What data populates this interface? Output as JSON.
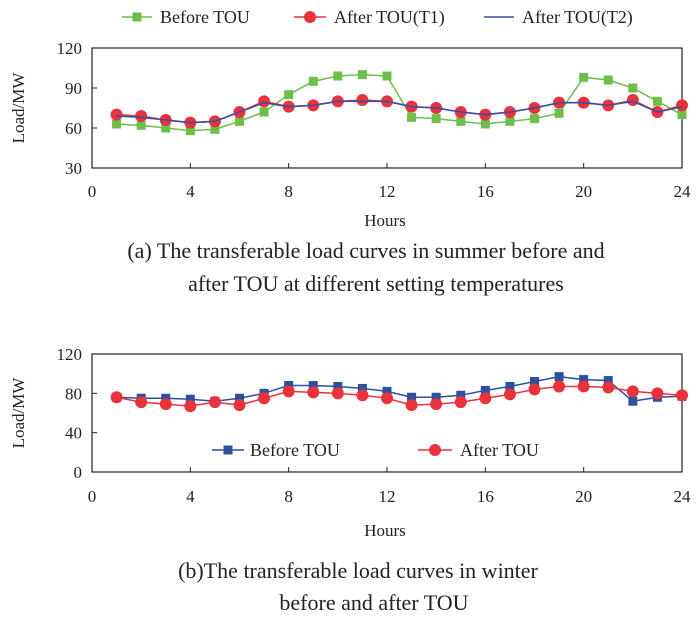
{
  "chart_data": [
    {
      "type": "line",
      "caption": [
        "(a) The transferable load curves in summer before and",
        "after TOU at different setting temperatures"
      ],
      "xlabel": "Hours",
      "ylabel": "Load/MW",
      "xlim": [
        0,
        24
      ],
      "ylim": [
        30,
        120
      ],
      "xticks": [
        "0",
        "4",
        "8",
        "12",
        "16",
        "20",
        "24"
      ],
      "yticks": [
        "30",
        "60",
        "90",
        "120"
      ],
      "grid": false,
      "legend_position": "top",
      "x": [
        1,
        2,
        3,
        4,
        5,
        6,
        7,
        8,
        9,
        10,
        11,
        12,
        13,
        14,
        15,
        16,
        17,
        18,
        19,
        20,
        21,
        22,
        23,
        24
      ],
      "series": [
        {
          "name": "Before TOU",
          "color": "#6cbf4a",
          "marker": "square",
          "values": [
            63,
            62,
            60,
            58,
            59,
            65,
            72,
            85,
            95,
            99,
            100,
            99,
            68,
            67,
            65,
            63,
            65,
            67,
            71,
            98,
            96,
            90,
            80,
            70
          ]
        },
        {
          "name": "After TOU(T1)",
          "color": "#e8323c",
          "marker": "circle",
          "values": [
            70,
            69,
            66,
            64,
            65,
            72,
            80,
            76,
            77,
            80,
            81,
            80,
            76,
            75,
            72,
            70,
            72,
            75,
            79,
            79,
            77,
            81,
            72,
            77
          ]
        },
        {
          "name": "After TOU(T2)",
          "color": "#3b4f9e",
          "marker": "none",
          "values": [
            69,
            68,
            66,
            64,
            65,
            72,
            79,
            76,
            77,
            80,
            80,
            80,
            76,
            75,
            72,
            70,
            72,
            75,
            79,
            79,
            77,
            80,
            72,
            76
          ]
        }
      ]
    },
    {
      "type": "line",
      "caption": [
        "(b)The transferable load curves in winter",
        "before and after TOU"
      ],
      "xlabel": "Hours",
      "ylabel": "Load/MW",
      "xlim": [
        0,
        24
      ],
      "ylim": [
        0,
        120
      ],
      "xticks": [
        "0",
        "4",
        "8",
        "12",
        "16",
        "20",
        "24"
      ],
      "yticks": [
        "0",
        "40",
        "80",
        "120"
      ],
      "grid": false,
      "legend_position": "bottom-center",
      "x": [
        1,
        2,
        3,
        4,
        5,
        6,
        7,
        8,
        9,
        10,
        11,
        12,
        13,
        14,
        15,
        16,
        17,
        18,
        19,
        20,
        21,
        22,
        23,
        24
      ],
      "series": [
        {
          "name": "Before TOU",
          "color": "#2c4f9e",
          "marker": "square",
          "values": [
            76,
            75,
            75,
            74,
            72,
            75,
            80,
            88,
            88,
            87,
            85,
            82,
            76,
            76,
            78,
            83,
            87,
            92,
            97,
            94,
            93,
            72,
            76,
            77
          ]
        },
        {
          "name": "After TOU",
          "color": "#e8323c",
          "marker": "circle",
          "values": [
            76,
            71,
            69,
            67,
            71,
            68,
            75,
            82,
            81,
            80,
            78,
            75,
            68,
            69,
            71,
            75,
            79,
            84,
            87,
            87,
            86,
            82,
            80,
            78
          ]
        }
      ]
    }
  ]
}
